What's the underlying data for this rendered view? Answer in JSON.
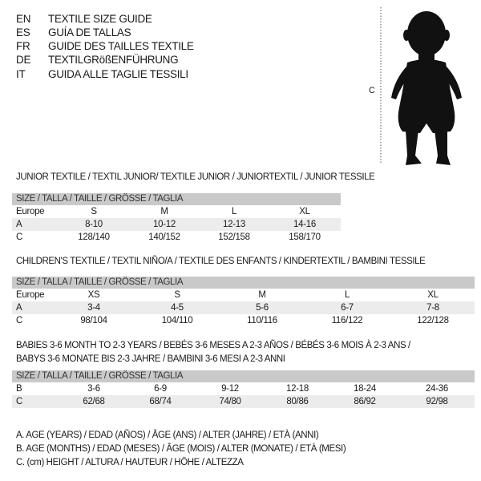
{
  "header": {
    "lines": [
      {
        "code": "EN",
        "text": "TEXTILE SIZE GUIDE"
      },
      {
        "code": "ES",
        "text": "GUÍA DE TALLAS"
      },
      {
        "code": "FR",
        "text": "GUIDE DES TAILLES TEXTILE"
      },
      {
        "code": "DE",
        "text": "TEXTILGRößENFÜHRUNG"
      },
      {
        "code": "IT",
        "text": "GUIDA ALLE TAGLIE TESSILI"
      }
    ],
    "figure_label": "C"
  },
  "junior": {
    "title": "JUNIOR TEXTILE / TEXTIL JUNIOR/ TEXTILE JUNIOR / JUNIORTEXTIL / JUNIOR TESSILE",
    "header": "SIZE / TALLA / TAILLE / GRÖSSE / TAGLIA",
    "rows": [
      {
        "label": "Europe",
        "values": [
          "S",
          "M",
          "L",
          "XL"
        ]
      },
      {
        "label": "A",
        "values": [
          "8-10",
          "10-12",
          "12-13",
          "14-16"
        ]
      },
      {
        "label": "C",
        "values": [
          "128/140",
          "140/152",
          "152/158",
          "158/170"
        ]
      }
    ]
  },
  "children": {
    "title": "CHILDREN'S TEXTILE / TEXTIL NIÑO/A / TEXTILE DES ENFANTS / KINDERTEXTIL / BAMBINI TESSILE",
    "header": "SIZE / TALLA / TAILLE / GRÖSSE / TAGLIA",
    "rows": [
      {
        "label": "Europe",
        "values": [
          "XS",
          "S",
          "M",
          "L",
          "XL"
        ]
      },
      {
        "label": "A",
        "values": [
          "3-4",
          "4-5",
          "5-6",
          "6-7",
          "7-8"
        ]
      },
      {
        "label": "C",
        "values": [
          "98/104",
          "104/110",
          "110/116",
          "116/122",
          "122/128"
        ]
      }
    ]
  },
  "babies": {
    "title_line1": "BABIES 3-6 MONTH TO 2-3 YEARS / BEBÉS 3-6 MESES A 2-3 AÑOS / BÉBÉS 3-6 MOIS À 2-3 ANS /",
    "title_line2": "BABYS 3-6 MONATE BIS 2-3 JAHRE / BAMBINI 3-6 MESI A 2-3 ANNI",
    "header": "SIZE / TALLA / TAILLE / GRÖSSE / TAGLIA",
    "rows": [
      {
        "label": "B",
        "values": [
          "3-6",
          "6-9",
          "9-12",
          "12-18",
          "18-24",
          "24-36"
        ]
      },
      {
        "label": "C",
        "values": [
          "62/68",
          "68/74",
          "74/80",
          "80/86",
          "86/92",
          "92/98"
        ]
      }
    ]
  },
  "legend": [
    "A. AGE (YEARS) / EDAD (AÑOS) / ÂGE (ANS) / ALTER (JAHRE) / ETÀ (ANNI)",
    "B. AGE (MONTHS) / EDAD (MESES) / ÂGE (MOIS) / ALTER (MONATE) / ETÀ (MESI)",
    "C. (cm) HEIGHT / ALTURA / HAUTEUR / HÖHE / ALTEZZA"
  ]
}
